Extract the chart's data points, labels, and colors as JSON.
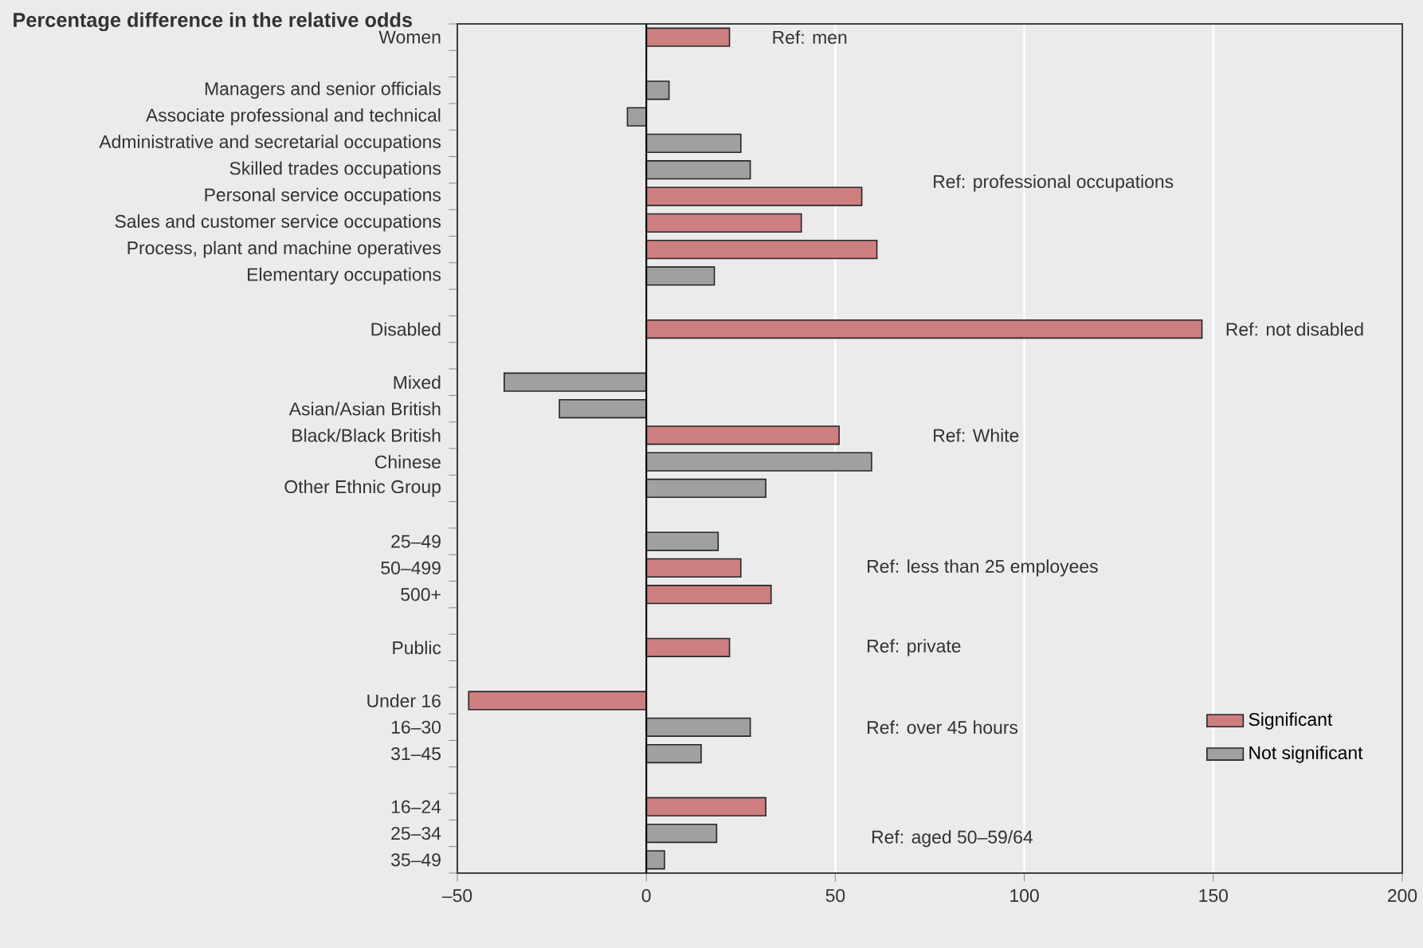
{
  "chart_data": {
    "type": "bar",
    "orientation": "horizontal",
    "title": "Percentage difference in the relative odds",
    "categories": [
      "Women",
      null,
      "Managers and senior officials",
      "Associate professional and technical",
      "Administrative and secretarial occupations",
      "Skilled trades occupations",
      "Personal service occupations",
      "Sales and customer service occupations",
      "Process, plant and machine operatives",
      "Elementary occupations",
      null,
      "Disabled",
      null,
      "Mixed",
      "Asian/Asian British",
      "Black/Black British",
      "Chinese",
      "Other Ethnic Group",
      null,
      "25–49",
      "50–499",
      "500+",
      null,
      "Public",
      null,
      "Under 16",
      "16–30",
      "31–45",
      null,
      "16–24",
      "25–34",
      "35–49"
    ],
    "series": [
      {
        "name": "Significant",
        "color": "#cd7f80",
        "values": [
          22,
          null,
          null,
          null,
          null,
          null,
          57,
          41,
          61,
          null,
          null,
          147,
          null,
          null,
          null,
          51,
          null,
          null,
          null,
          null,
          25,
          33,
          null,
          22,
          null,
          -47,
          null,
          null,
          null,
          31.6,
          null,
          null
        ]
      },
      {
        "name": "Not significant",
        "color": "#a0a0a0",
        "values": [
          null,
          null,
          6,
          -5,
          25,
          27.5,
          null,
          null,
          null,
          18,
          null,
          null,
          null,
          -37.6,
          -23,
          null,
          59.6,
          31.6,
          null,
          19,
          null,
          null,
          null,
          null,
          null,
          null,
          27.5,
          14.5,
          null,
          null,
          18.6,
          4.8
        ]
      }
    ],
    "xlim": [
      -50,
      200
    ],
    "xticks": [
      {
        "value": -50,
        "label": "–50"
      },
      0,
      50,
      100,
      150,
      200
    ],
    "grid": "x",
    "legend": "bottom right",
    "ref_lines": [
      {
        "axis": "x",
        "value": 0,
        "color": "#000000"
      }
    ],
    "annotations": [
      "Ref: men",
      "Ref: professional occupations",
      "Ref: not disabled",
      "Ref: White",
      "Ref: less than 25 employees",
      "Ref: private",
      "Ref: over 45 hours",
      "Ref: aged 50–59/64"
    ]
  }
}
